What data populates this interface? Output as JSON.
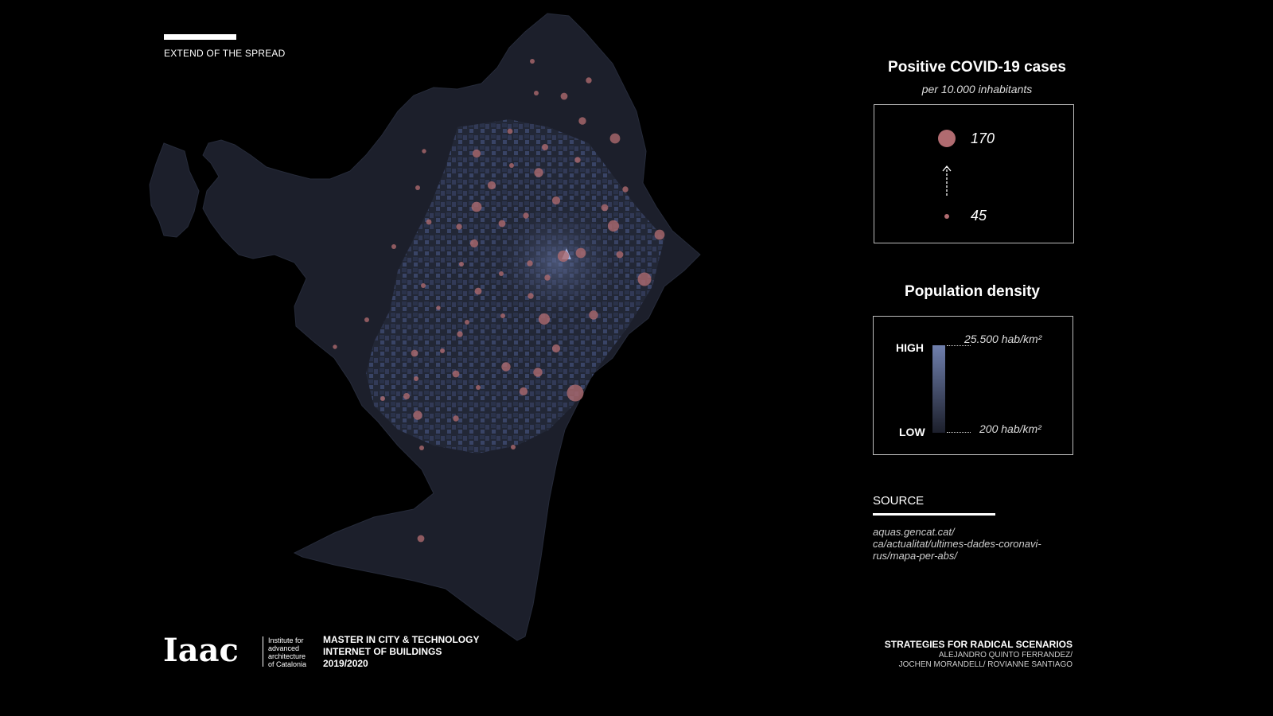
{
  "header": {
    "label": "EXTEND OF THE SPREAD"
  },
  "legend": {
    "cases_title": "Positive COVID-19 cases",
    "cases_sub": "per 10.000 inhabitants",
    "cases_max": "170",
    "cases_min": "45",
    "density_title": "Population density",
    "density_high_label": "HIGH",
    "density_low_label": "LOW",
    "density_high_value": "25.500 hab/km²",
    "density_low_value": "200 hab/km²",
    "colors": {
      "bubble": "#b06b70",
      "map_base": "#1c1f2b",
      "density_high": "#6f7fad"
    }
  },
  "source": {
    "title": "SOURCE",
    "lines": [
      "aquas.gencat.cat/",
      "ca/actualitat/ultimes-dades-coronavi-",
      "rus/mapa-per-abs/"
    ]
  },
  "footer": {
    "logo": "Iaac",
    "institute_lines": [
      "Institute for",
      "advanced",
      "architecture",
      "of Catalonia"
    ],
    "program_lines": [
      "MASTER IN CITY & TECHNOLOGY",
      "INTERNET OF BUILDINGS",
      "2019/2020"
    ],
    "project_title": "STRATEGIES FOR RADICAL SCENARIOS",
    "authors_lines": [
      "ALEJANDRO QUINTO FERRANDEZ/",
      "JOCHEN MORANDELL/ ROVIANNE SANTIAGO"
    ]
  },
  "bubbles": [
    {
      "v": 60
    },
    {
      "v": 70
    },
    {
      "v": 60
    },
    {
      "v": 80
    },
    {
      "v": 55
    },
    {
      "v": 90
    },
    {
      "v": 75
    },
    {
      "v": 65
    },
    {
      "v": 85
    },
    {
      "v": 110
    },
    {
      "v": 60
    },
    {
      "v": 100
    },
    {
      "v": 70
    },
    {
      "v": 90
    },
    {
      "v": 70
    },
    {
      "v": 60
    },
    {
      "v": 110
    },
    {
      "v": 70
    },
    {
      "v": 80
    },
    {
      "v": 90
    },
    {
      "v": 65
    },
    {
      "v": 120
    },
    {
      "v": 80
    },
    {
      "v": 110
    },
    {
      "v": 70
    },
    {
      "v": 60
    },
    {
      "v": 110
    },
    {
      "v": 90
    },
    {
      "v": 70
    },
    {
      "v": 60
    },
    {
      "v": 140
    },
    {
      "v": 70
    },
    {
      "v": 60
    },
    {
      "v": 80
    },
    {
      "v": 120
    },
    {
      "v": 60
    },
    {
      "v": 55
    },
    {
      "v": 80
    },
    {
      "v": 100
    },
    {
      "v": 70
    },
    {
      "v": 60
    },
    {
      "v": 120
    },
    {
      "v": 60
    },
    {
      "v": 80
    },
    {
      "v": 100
    },
    {
      "v": 70
    },
    {
      "v": 60
    },
    {
      "v": 90
    },
    {
      "v": 60
    },
    {
      "v": 55
    },
    {
      "v": 100
    },
    {
      "v": 170
    },
    {
      "v": 80
    },
    {
      "v": 60
    },
    {
      "v": 60
    },
    {
      "v": 90
    },
    {
      "v": 100
    },
    {
      "v": 70
    },
    {
      "v": 60
    },
    {
      "v": 75
    },
    {
      "v": 60
    },
    {
      "v": 60
    },
    {
      "v": 80
    }
  ]
}
